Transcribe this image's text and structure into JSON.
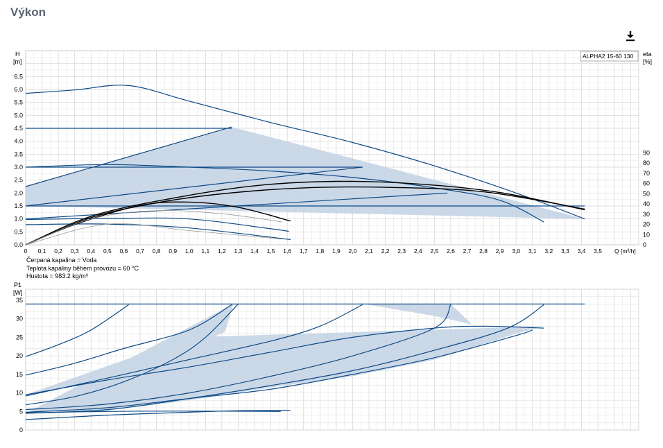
{
  "page": {
    "title": "Výkon",
    "download_icon": "download-icon"
  },
  "colors": {
    "curve": "#0d4a86",
    "fill": "#c5d4e4",
    "system_curve": "#000000",
    "grid": "#d9d9d9"
  },
  "fluid_info": [
    "Čerpaná kapalina = Voda",
    "Teplota kapaliny během provozu = 60 °C",
    "Hustota = 983.2 kg/m³"
  ],
  "chart_data": [
    {
      "id": "head",
      "type": "line",
      "legend": "ALPHA2 15-60 130",
      "legend_position": "top-right",
      "grid": true,
      "xlabel": "Q [m³/h]",
      "ylabel": [
        "H",
        "[m]"
      ],
      "y2label": [
        "eta",
        "[%]"
      ],
      "xlim": [
        0,
        3.75
      ],
      "ylim": [
        0,
        7.5
      ],
      "y2lim": [
        0,
        190
      ],
      "x_ticks": [
        "0",
        "0,1",
        "0,2",
        "0,3",
        "0,4",
        "0,5",
        "0,6",
        "0,7",
        "0,8",
        "0,9",
        "1,0",
        "1,1",
        "1,2",
        "1,3",
        "1,4",
        "1,5",
        "1,6",
        "1,7",
        "1,8",
        "1,9",
        "2,0",
        "2,1",
        "2,2",
        "2,3",
        "2,4",
        "2,5",
        "2,6",
        "2,7",
        "2,8",
        "2,9",
        "3,0",
        "3,1",
        "3,2",
        "3,3",
        "3,4",
        "3,5"
      ],
      "y_ticks": [
        "0.0",
        "0.5",
        "1.0",
        "1.5",
        "2.0",
        "2.5",
        "3.0",
        "3.5",
        "4.0",
        "4.5",
        "5.0",
        "5.5",
        "6.0",
        "6.5"
      ],
      "y2_ticks": [
        "0",
        "10",
        "20",
        "30",
        "40",
        "50",
        "60",
        "70",
        "80",
        "90"
      ],
      "shaded_region": [
        [
          0,
          2.25
        ],
        [
          1.26,
          4.55
        ],
        [
          3.42,
          1.0
        ],
        [
          0,
          1.5
        ]
      ],
      "series": [
        {
          "style": "curve",
          "points": [
            [
              0,
              5.85
            ],
            [
              0.3,
              5.98
            ],
            [
              0.63,
              6.15
            ],
            [
              1.0,
              5.55
            ],
            [
              1.5,
              4.72
            ],
            [
              2.0,
              3.95
            ],
            [
              2.5,
              3.05
            ],
            [
              3.0,
              2.0
            ],
            [
              3.42,
              1.0
            ]
          ]
        },
        {
          "style": "curve",
          "points": [
            [
              0,
              4.5
            ],
            [
              1.26,
              4.5
            ]
          ]
        },
        {
          "style": "curve",
          "points": [
            [
              0,
              3.0
            ],
            [
              2.06,
              3.0
            ]
          ]
        },
        {
          "style": "curve",
          "points": [
            [
              0,
              1.5
            ],
            [
              3.42,
              1.5
            ]
          ]
        },
        {
          "style": "curve",
          "points": [
            [
              0,
              2.25
            ],
            [
              1.26,
              4.55
            ]
          ]
        },
        {
          "style": "curve",
          "points": [
            [
              0,
              1.5
            ],
            [
              2.06,
              3.0
            ]
          ]
        },
        {
          "style": "curve",
          "points": [
            [
              0,
              1.0
            ],
            [
              2.58,
              2.0
            ]
          ]
        },
        {
          "style": "curve",
          "points": [
            [
              0,
              3.0
            ],
            [
              0.5,
              3.1
            ],
            [
              1.0,
              3.0
            ],
            [
              1.5,
              2.85
            ],
            [
              2.0,
              2.6
            ],
            [
              2.5,
              2.2
            ],
            [
              2.9,
              1.72
            ],
            [
              3.17,
              0.88
            ]
          ]
        },
        {
          "style": "curve",
          "points": [
            [
              0,
              0.98
            ],
            [
              0.5,
              1.02
            ],
            [
              1.0,
              1.0
            ],
            [
              1.5,
              0.62
            ],
            [
              1.61,
              0.52
            ]
          ]
        },
        {
          "style": "curve",
          "points": [
            [
              0,
              0.78
            ],
            [
              0.5,
              0.8
            ],
            [
              1.0,
              0.65
            ],
            [
              1.62,
              0.2
            ]
          ]
        },
        {
          "style": "system",
          "points": [
            [
              0,
              0
            ],
            [
              0.3,
              0.78
            ],
            [
              0.7,
              1.52
            ],
            [
              1.0,
              1.65
            ],
            [
              1.3,
              1.45
            ],
            [
              1.62,
              0.92
            ]
          ]
        },
        {
          "style": "system",
          "points": [
            [
              0,
              0
            ],
            [
              0.4,
              1.05
            ],
            [
              0.8,
              1.62
            ],
            [
              1.2,
              1.97
            ],
            [
              1.7,
              2.2
            ],
            [
              2.2,
              2.22
            ],
            [
              2.8,
              2.05
            ],
            [
              3.42,
              1.38
            ]
          ]
        },
        {
          "style": "system",
          "points": [
            [
              0,
              0
            ],
            [
              0.4,
              1.1
            ],
            [
              0.9,
              1.8
            ],
            [
              1.4,
              2.28
            ],
            [
              1.9,
              2.45
            ],
            [
              2.4,
              2.35
            ],
            [
              2.9,
              2.02
            ],
            [
              3.42,
              1.35
            ]
          ]
        },
        {
          "style": "thin",
          "points": [
            [
              0,
              0
            ],
            [
              0.4,
              1.0
            ],
            [
              0.8,
              1.32
            ],
            [
              1.2,
              1.2
            ],
            [
              1.57,
              0.88
            ]
          ]
        },
        {
          "style": "thin",
          "points": [
            [
              0,
              0
            ],
            [
              0.5,
              0.8
            ],
            [
              1.0,
              0.55
            ],
            [
              1.57,
              0.22
            ]
          ]
        }
      ]
    },
    {
      "id": "power",
      "type": "line",
      "grid": true,
      "ylabel": [
        "P1",
        "[W]"
      ],
      "xlim": [
        0,
        3.75
      ],
      "ylim": [
        0,
        38
      ],
      "y_ticks": [
        "0",
        "5",
        "10",
        "15",
        "20",
        "25",
        "30",
        "35"
      ],
      "shaded_region": [
        [
          0,
          4.5
        ],
        [
          0.5,
          5.2
        ],
        [
          1.0,
          8
        ],
        [
          1.5,
          11.5
        ],
        [
          2.0,
          14.5
        ],
        [
          2.5,
          19
        ],
        [
          3.0,
          26
        ],
        [
          3.17,
          28
        ],
        [
          1.0,
          25
        ],
        [
          0,
          9.5
        ],
        [
          0.5,
          14
        ],
        [
          0.9,
          20
        ],
        [
          1.22,
          26.5
        ],
        [
          1.27,
          34
        ],
        [
          2.07,
          34
        ],
        [
          2.6,
          34
        ],
        [
          2.73,
          28.5
        ],
        [
          2.5,
          30.8
        ],
        [
          2.07,
          34
        ],
        [
          1.27,
          34
        ]
      ],
      "series": [
        {
          "style": "curve",
          "points": [
            [
              0,
              34
            ],
            [
              3.42,
              34
            ]
          ]
        },
        {
          "style": "curve",
          "points": [
            [
              0,
              19.8
            ],
            [
              0.2,
              23
            ],
            [
              0.4,
              27
            ],
            [
              0.63,
              33.8
            ]
          ]
        },
        {
          "style": "curve",
          "points": [
            [
              0,
              14.8
            ],
            [
              0.3,
              18
            ],
            [
              0.6,
              22
            ],
            [
              1.0,
              27
            ],
            [
              1.26,
              33.8
            ]
          ]
        },
        {
          "style": "curve",
          "points": [
            [
              0,
              6.8
            ],
            [
              0.3,
              9
            ],
            [
              0.6,
              13
            ],
            [
              0.9,
              19
            ],
            [
              1.1,
              25
            ],
            [
              1.3,
              34
            ]
          ]
        },
        {
          "style": "curve",
          "points": [
            [
              0,
              9.2
            ],
            [
              0.5,
              14
            ],
            [
              1.0,
              19
            ],
            [
              1.5,
              24
            ],
            [
              1.8,
              28
            ],
            [
              2.06,
              33.8
            ]
          ]
        },
        {
          "style": "curve",
          "points": [
            [
              0,
              5.5
            ],
            [
              0.5,
              7
            ],
            [
              1.0,
              10
            ],
            [
              1.5,
              14.5
            ],
            [
              2.0,
              20
            ],
            [
              2.5,
              27.5
            ],
            [
              2.6,
              33.8
            ]
          ]
        },
        {
          "style": "curve",
          "points": [
            [
              0,
              4.5
            ],
            [
              0.5,
              5.5
            ],
            [
              1.0,
              8.5
            ],
            [
              1.5,
              12
            ],
            [
              2.0,
              16
            ],
            [
              2.5,
              21.5
            ],
            [
              2.95,
              27.5
            ],
            [
              3.17,
              33.8
            ]
          ]
        },
        {
          "style": "curve",
          "points": [
            [
              0,
              9.5
            ],
            [
              0.5,
              13.5
            ],
            [
              1.0,
              17
            ],
            [
              1.5,
              21
            ],
            [
              2.0,
              25
            ],
            [
              2.5,
              27.5
            ],
            [
              2.8,
              28
            ],
            [
              3.17,
              27.5
            ]
          ]
        },
        {
          "style": "curve",
          "points": [
            [
              0,
              4.8
            ],
            [
              0.5,
              6
            ],
            [
              1.0,
              8.5
            ],
            [
              1.5,
              11
            ],
            [
              2.0,
              15
            ],
            [
              2.5,
              19.5
            ],
            [
              3.0,
              25.5
            ],
            [
              3.1,
              27
            ]
          ]
        },
        {
          "style": "curve",
          "points": [
            [
              0,
              2.8
            ],
            [
              0.5,
              4.0
            ],
            [
              1.0,
              4.8
            ],
            [
              1.3,
              5.2
            ],
            [
              1.62,
              5.3
            ]
          ]
        },
        {
          "style": "curve",
          "points": [
            [
              0,
              4.6
            ],
            [
              0.5,
              5.0
            ],
            [
              1.0,
              5.1
            ],
            [
              1.56,
              5.0
            ]
          ]
        }
      ]
    }
  ]
}
